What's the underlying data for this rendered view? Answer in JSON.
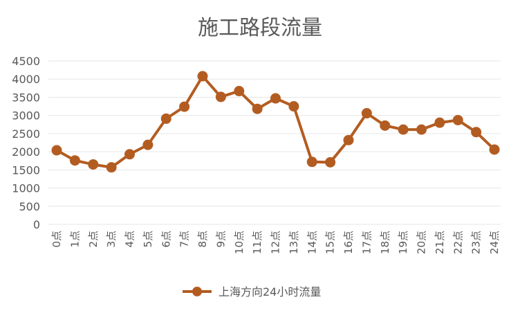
{
  "chart_data": {
    "type": "line",
    "title": "施工路段流量",
    "categories": [
      "0点",
      "1点",
      "2点",
      "3点",
      "4点",
      "5点",
      "6点",
      "7点",
      "8点",
      "9点",
      "10点",
      "11点",
      "12点",
      "13点",
      "14点",
      "15点",
      "16点",
      "17点",
      "18点",
      "19点",
      "20点",
      "21点",
      "22点",
      "23点",
      "24点"
    ],
    "series": [
      {
        "name": "上海方向24小时流量",
        "color": "#b35c22",
        "values": [
          2040,
          1760,
          1650,
          1570,
          1930,
          2190,
          2910,
          3240,
          4080,
          3510,
          3670,
          3180,
          3470,
          3250,
          1720,
          1710,
          2320,
          3060,
          2720,
          2610,
          2610,
          2800,
          2870,
          2540,
          2060
        ]
      }
    ],
    "ylim": [
      0,
      4500
    ],
    "yticks": [
      "0",
      "500",
      "1000",
      "1500",
      "2000",
      "2500",
      "3000",
      "3500",
      "4000",
      "4500"
    ],
    "grid": true,
    "legend": "bottom"
  }
}
